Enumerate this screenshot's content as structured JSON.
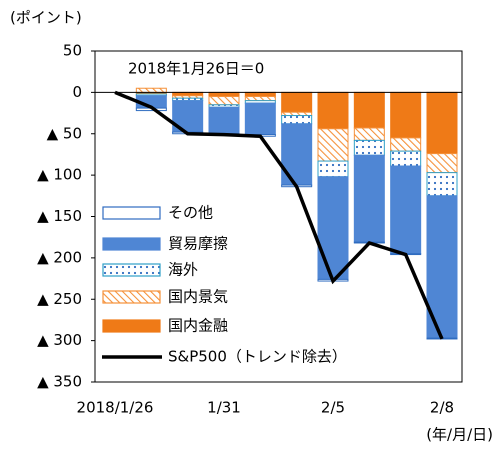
{
  "chart_data": {
    "type": "bar",
    "y_axis_label": "(ポイント)",
    "annotation": "2018年1月26日＝0",
    "x_unit_label": "(年/月/日)",
    "categories": [
      "2018/1/26",
      null,
      null,
      "1/31",
      null,
      null,
      "2/5",
      null,
      null,
      "2/8"
    ],
    "ylim": [
      -350,
      50
    ],
    "yticks": [
      50,
      0,
      {
        "value": -50,
        "label": "▲ 50"
      },
      {
        "value": -100,
        "label": "▲ 100"
      },
      {
        "value": -150,
        "label": "▲ 150"
      },
      {
        "value": -200,
        "label": "▲ 200"
      },
      {
        "value": -250,
        "label": "▲ 250"
      },
      {
        "value": -300,
        "label": "▲ 300"
      },
      {
        "value": -350,
        "label": "▲ 350"
      }
    ],
    "series": [
      {
        "name": "その他",
        "color": "#2f6cc0",
        "pattern": "outline",
        "values": [
          null,
          -3,
          -2,
          -1,
          -2,
          -2,
          -2,
          -1,
          -1,
          -1
        ]
      },
      {
        "name": "貿易摩擦",
        "color": "#4f86d4",
        "pattern": "solid",
        "values": [
          null,
          -15,
          -38,
          -32,
          -38,
          -74,
          -124,
          -105,
          -106,
          -172
        ]
      },
      {
        "name": "海外",
        "color": "#2fa0c8",
        "pattern": "dots",
        "values": [
          null,
          -2,
          -3,
          -3,
          -3,
          -10,
          -19,
          -18,
          -18,
          -28
        ]
      },
      {
        "name": "国内景気",
        "color": "#f5913a",
        "pattern": "hatch",
        "values": [
          null,
          5,
          -3,
          -10,
          -5,
          -4,
          -39,
          -15,
          -16,
          -23
        ]
      },
      {
        "name": "国内金融",
        "color": "#ef7a17",
        "pattern": "solid",
        "values": [
          null,
          -2,
          -4,
          -5,
          -5,
          -24,
          -44,
          -43,
          -55,
          -74
        ]
      },
      {
        "name": "S&P500（トレンド除去）",
        "color": "#000000",
        "type": "line",
        "values": [
          0,
          -18,
          -50,
          -51,
          -53,
          -114,
          -228,
          -182,
          -196,
          -298
        ]
      }
    ]
  }
}
